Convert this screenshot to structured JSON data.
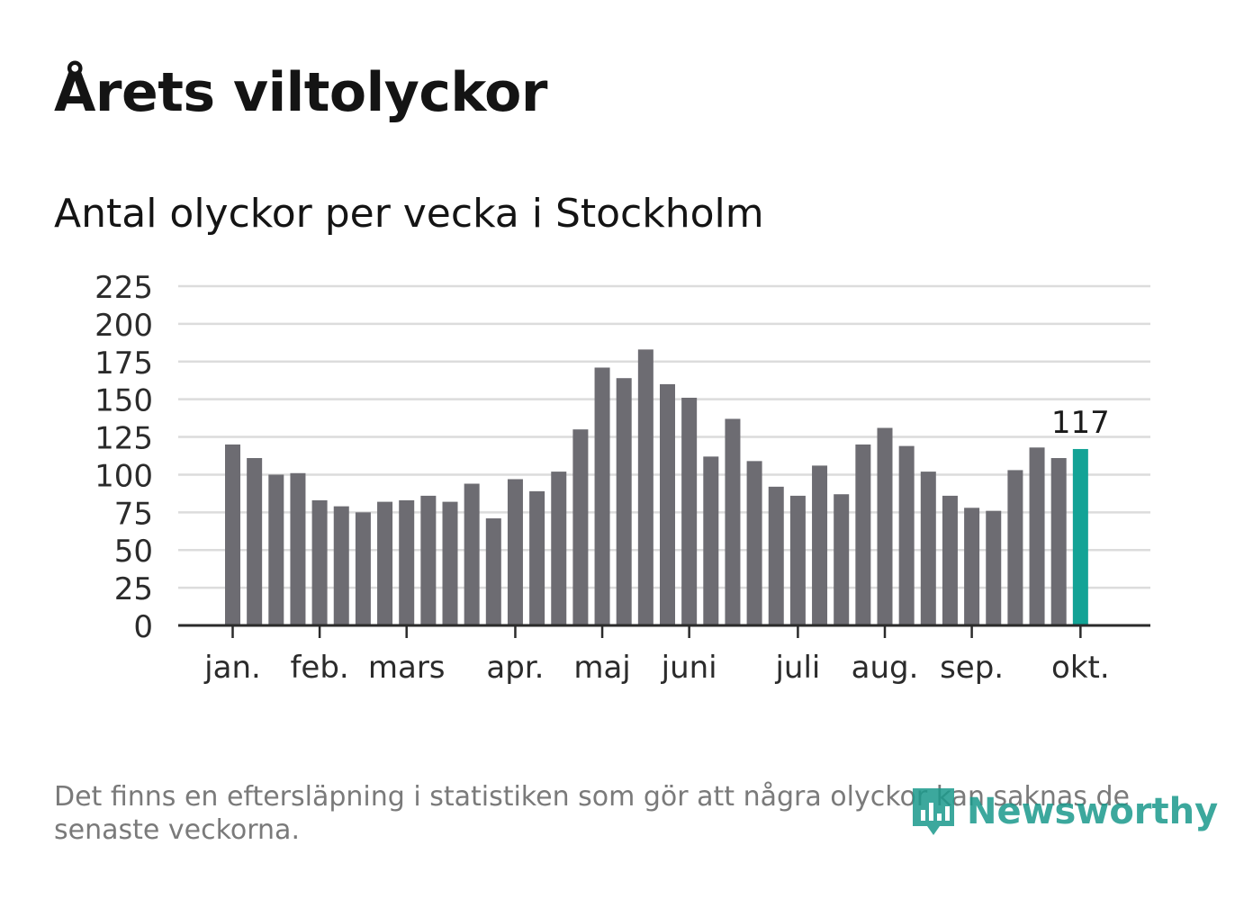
{
  "title": "Årets viltolyckor",
  "subtitle": "Antal olyckor per vecka i Stockholm",
  "footnote": "Det finns en eftersläpning i statistiken som gör att några olyckor kan saknas de senaste veckorna.",
  "logo": {
    "text": "Newsworthy",
    "icon": "newsworthy-logo-icon"
  },
  "colors": {
    "bar": "#6d6c72",
    "highlight": "#13a396",
    "grid": "#dcdcdc",
    "axis": "#2b2b2b",
    "text": "#2b2b2b"
  },
  "chart_data": {
    "type": "bar",
    "title": "Antal olyckor per vecka i Stockholm",
    "xlabel": "",
    "ylabel": "",
    "ylim": [
      0,
      225
    ],
    "yticks": [
      0,
      25,
      50,
      75,
      100,
      125,
      150,
      175,
      200,
      225
    ],
    "values": [
      120,
      111,
      100,
      101,
      83,
      79,
      75,
      82,
      83,
      86,
      82,
      94,
      71,
      97,
      89,
      102,
      130,
      171,
      164,
      183,
      160,
      151,
      112,
      137,
      109,
      92,
      86,
      106,
      87,
      120,
      131,
      119,
      102,
      86,
      78,
      76,
      103,
      118,
      111,
      117
    ],
    "highlight_index": 39,
    "highlight_label": "117",
    "months": [
      {
        "label": "jan.",
        "week_index": 0
      },
      {
        "label": "feb.",
        "week_index": 4
      },
      {
        "label": "mars",
        "week_index": 8
      },
      {
        "label": "apr.",
        "week_index": 13
      },
      {
        "label": "maj",
        "week_index": 17
      },
      {
        "label": "juni",
        "week_index": 21
      },
      {
        "label": "juli",
        "week_index": 26
      },
      {
        "label": "aug.",
        "week_index": 30
      },
      {
        "label": "sep.",
        "week_index": 34
      },
      {
        "label": "okt.",
        "week_index": 39
      }
    ],
    "grid": true
  }
}
